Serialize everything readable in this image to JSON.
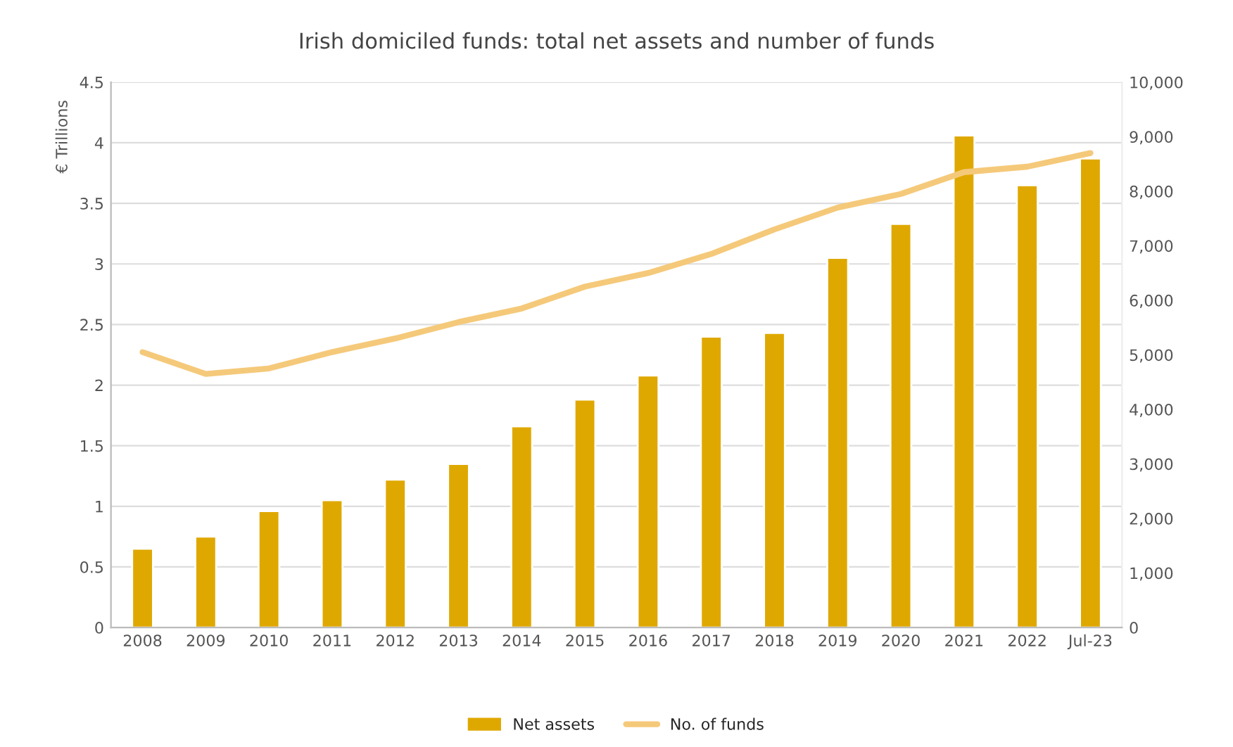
{
  "chart_data": {
    "type": "bar",
    "title": "Irish domiciled funds: total net assets and number of funds",
    "ylabel": "€ Trillions",
    "categories": [
      "2008",
      "2009",
      "2010",
      "2011",
      "2012",
      "2013",
      "2014",
      "2015",
      "2016",
      "2017",
      "2018",
      "2019",
      "2020",
      "2021",
      "2022",
      "Jul-23"
    ],
    "series": [
      {
        "name": "Net assets",
        "color": "#dfa800",
        "values": [
          0.65,
          0.75,
          0.96,
          1.05,
          1.22,
          1.35,
          1.66,
          1.88,
          2.08,
          2.4,
          2.43,
          3.05,
          3.33,
          4.06,
          3.65,
          3.87
        ]
      },
      {
        "name": "No. of funds",
        "type": "line",
        "axis": "y2",
        "color": "#f5c97a",
        "values": [
          5050,
          4650,
          4750,
          5050,
          5300,
          5600,
          5850,
          6250,
          6500,
          6850,
          7300,
          7700,
          7950,
          8350,
          8450,
          8700
        ]
      }
    ],
    "ylim": [
      0,
      4.5
    ],
    "yticks": [
      0,
      0.5,
      1,
      1.5,
      2,
      2.5,
      3,
      3.5,
      4,
      4.5
    ],
    "y2lim": [
      0,
      10000
    ],
    "y2ticks": [
      {
        "value": 0,
        "label": "0"
      },
      {
        "value": 1000,
        "label": "1,000"
      },
      {
        "value": 2000,
        "label": "2,000"
      },
      {
        "value": 3000,
        "label": "3,000"
      },
      {
        "value": 4000,
        "label": "4,000"
      },
      {
        "value": 5000,
        "label": "5,000"
      },
      {
        "value": 6000,
        "label": "6,000"
      },
      {
        "value": 7000,
        "label": "7,000"
      },
      {
        "value": 8000,
        "label": "8,000"
      },
      {
        "value": 9000,
        "label": "9,000"
      },
      {
        "value": 10000,
        "label": "10,000"
      }
    ],
    "grid": "y",
    "legend": "bottom",
    "marker": "none",
    "line_style": "solid"
  }
}
